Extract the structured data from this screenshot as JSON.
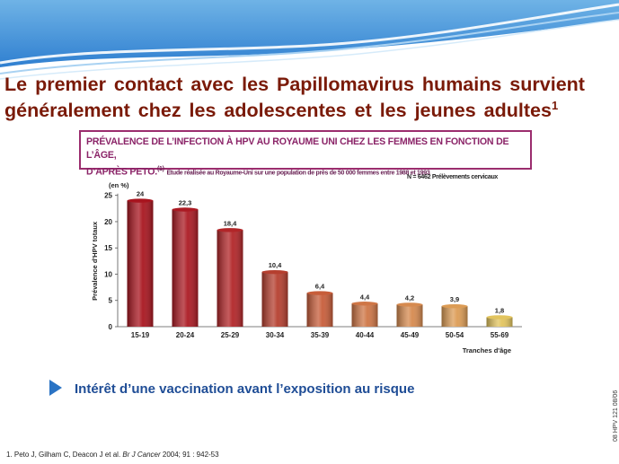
{
  "slide": {
    "title_line1": "Le premier contact avec les Papillomavirus humains survient",
    "title_line2": "généralement chez les adolescentes et les jeunes adultes",
    "title_ref": "1",
    "bullet": "Intérêt d’une vaccination avant l’exposition au risque",
    "footnote_plain": "1. Peto J, Gilham C, Deacon J et al.",
    "footnote_journal": "Br J Cancer",
    "footnote_rest": " 2004; 91 : 942-53",
    "side_code": "08 HPV 121 08/06"
  },
  "chart_heading": {
    "line1": "PRÉVALENCE DE L’INFECTION À HPV AU ROYAUME UNI CHEZ LES FEMMES EN FONCTION DE L’ÂGE,",
    "line2_lead": "D’APRÈS PETO.",
    "line2_ref": "(1)",
    "line2_sub": "Etude réalisée au Royaume-Uni sur une population de près de 50 000 femmes entre 1988 et 1993"
  },
  "chart_note": "N = 6462  Prélèvements cervicaux",
  "chart_data": {
    "type": "bar",
    "categories": [
      "15-19",
      "20-24",
      "25-29",
      "30-34",
      "35-39",
      "40-44",
      "45-49",
      "50-54",
      "55-69"
    ],
    "values": [
      24,
      22.3,
      18.4,
      10.4,
      6.4,
      4.4,
      4.2,
      3.9,
      1.8
    ],
    "value_labels": [
      "24",
      "22,3",
      "18,4",
      "10,4",
      "6,4",
      "4,4",
      "4,2",
      "3,9",
      "1,8"
    ],
    "ylabel": "Prévalence d'HPV totaux",
    "yunit": "(en %)",
    "xlabel": "Tranches d'âge",
    "ylim": [
      0,
      27
    ],
    "yticks": [
      0,
      5,
      10,
      15,
      20,
      25
    ],
    "bar_colors": [
      "#a8151f",
      "#ab1a23",
      "#b12528",
      "#b53f2f",
      "#c75d3a",
      "#cf7646",
      "#d68a4f",
      "#dc9c55",
      "#e2c45e"
    ],
    "grid": false,
    "legend": "none"
  }
}
